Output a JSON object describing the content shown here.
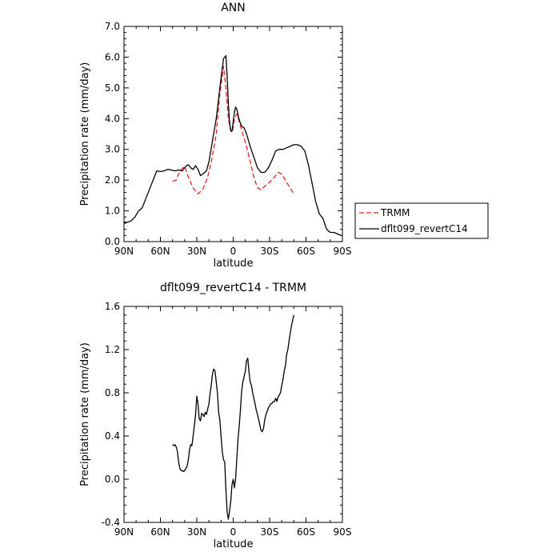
{
  "chart_data": [
    {
      "type": "line",
      "title": "ANN",
      "xlabel": "latitude",
      "ylabel": "Precipitation rate (mm/day)",
      "xlim": [
        90,
        -90
      ],
      "ylim": [
        0.0,
        7.0
      ],
      "x_ticks": [
        90,
        60,
        30,
        0,
        -30,
        -60,
        -90
      ],
      "x_tick_labels": [
        "90N",
        "60N",
        "30N",
        "0",
        "30S",
        "60S",
        "90S"
      ],
      "y_ticks": [
        0,
        1,
        2,
        3,
        4,
        5,
        6,
        7
      ],
      "y_tick_labels": [
        "0.0",
        "1.0",
        "2.0",
        "3.0",
        "4.0",
        "5.0",
        "6.0",
        "7.0"
      ],
      "legend_position": "right",
      "series": [
        {
          "name": "TRMM",
          "color": "#e8251f",
          "dash": true,
          "x": [
            50,
            47,
            44,
            40,
            37,
            33,
            29,
            25,
            21,
            18,
            14,
            11,
            8,
            6,
            4,
            2,
            1,
            0,
            -1,
            -3,
            -5,
            -8,
            -11,
            -14,
            -17,
            -20,
            -23,
            -26,
            -29,
            -33,
            -37,
            -40,
            -43,
            -46,
            -50
          ],
          "y": [
            1.96,
            2.0,
            2.3,
            2.45,
            2.1,
            1.75,
            1.55,
            1.7,
            2.1,
            2.6,
            3.5,
            4.8,
            5.7,
            5.0,
            4.0,
            3.6,
            3.55,
            3.7,
            4.0,
            4.15,
            3.9,
            3.5,
            3.1,
            2.6,
            2.1,
            1.75,
            1.68,
            1.8,
            1.9,
            2.05,
            2.25,
            2.2,
            2.0,
            1.8,
            1.55
          ]
        },
        {
          "name": "dflt099_revertC14",
          "color": "#000000",
          "dash": false,
          "x": [
            90,
            87,
            84,
            81,
            78,
            75,
            72,
            69,
            66,
            63,
            60,
            57,
            54,
            51,
            48,
            45,
            42,
            39,
            37,
            35,
            33,
            31,
            29,
            27,
            25,
            22,
            20,
            17,
            14,
            11,
            8,
            6,
            5,
            4,
            3,
            2,
            1,
            0,
            -1,
            -2,
            -3,
            -5,
            -7,
            -9,
            -11,
            -14,
            -17,
            -20,
            -23,
            -26,
            -29,
            -32,
            -35,
            -38,
            -41,
            -44,
            -47,
            -50,
            -53,
            -56,
            -59,
            -62,
            -65,
            -68,
            -71,
            -74,
            -77,
            -80,
            -83,
            -86,
            -89
          ],
          "y": [
            0.63,
            0.63,
            0.68,
            0.8,
            1.0,
            1.1,
            1.4,
            1.7,
            2.0,
            2.3,
            2.28,
            2.3,
            2.35,
            2.33,
            2.3,
            2.33,
            2.3,
            2.45,
            2.5,
            2.4,
            2.35,
            2.47,
            2.35,
            2.15,
            2.2,
            2.3,
            2.6,
            3.3,
            4.0,
            5.0,
            5.95,
            6.05,
            5.4,
            4.5,
            3.9,
            3.6,
            3.6,
            3.9,
            4.2,
            4.38,
            4.3,
            3.95,
            3.75,
            3.7,
            3.5,
            3.1,
            2.75,
            2.4,
            2.25,
            2.25,
            2.4,
            2.65,
            2.95,
            3.0,
            3.0,
            3.05,
            3.1,
            3.15,
            3.15,
            3.1,
            2.95,
            2.5,
            1.9,
            1.3,
            0.9,
            0.75,
            0.4,
            0.3,
            0.3,
            0.25,
            0.2
          ]
        }
      ]
    },
    {
      "type": "line",
      "title": "dflt099_revertC14 - TRMM",
      "xlabel": "latitude",
      "ylabel": "Precipitation rate (mm/day)",
      "xlim": [
        90,
        -90
      ],
      "ylim": [
        -0.4,
        1.6
      ],
      "x_ticks": [
        90,
        60,
        30,
        0,
        -30,
        -60,
        -90
      ],
      "x_tick_labels": [
        "90N",
        "60N",
        "30N",
        "0",
        "30S",
        "60S",
        "90S"
      ],
      "y_ticks": [
        -0.4,
        0.0,
        0.4,
        0.8,
        1.2,
        1.6
      ],
      "y_tick_labels": [
        "-0.4",
        "0.0",
        "0.4",
        "0.8",
        "1.2",
        "1.6"
      ],
      "series": [
        {
          "name": "",
          "color": "#000000",
          "dash": false,
          "x": [
            50,
            49,
            48,
            47,
            46,
            45,
            44,
            43,
            42,
            41,
            40,
            39,
            38,
            37,
            36,
            35,
            34,
            33,
            32,
            31,
            30,
            29,
            28,
            27,
            26,
            25,
            24,
            23,
            22,
            21,
            20,
            19,
            18,
            17,
            16,
            15,
            14,
            13,
            12,
            11,
            10,
            9,
            8,
            7,
            6,
            5,
            4,
            3,
            2,
            1,
            0,
            -1,
            -2,
            -3,
            -4,
            -5,
            -6,
            -7,
            -8,
            -9,
            -10,
            -11,
            -12,
            -13,
            -14,
            -15,
            -16,
            -17,
            -18,
            -19,
            -20,
            -21,
            -22,
            -23,
            -24,
            -25,
            -26,
            -27,
            -28,
            -29,
            -30,
            -31,
            -32,
            -33,
            -34,
            -35,
            -36,
            -37,
            -38,
            -39,
            -40,
            -41,
            -42,
            -43,
            -44,
            -45,
            -46,
            -47,
            -48,
            -49,
            -50
          ],
          "y": [
            0.32,
            0.31,
            0.32,
            0.3,
            0.26,
            0.16,
            0.1,
            0.08,
            0.08,
            0.07,
            0.08,
            0.1,
            0.12,
            0.18,
            0.27,
            0.32,
            0.31,
            0.4,
            0.5,
            0.6,
            0.77,
            0.7,
            0.56,
            0.54,
            0.61,
            0.6,
            0.58,
            0.62,
            0.6,
            0.65,
            0.7,
            0.8,
            0.88,
            0.98,
            1.02,
            1.0,
            0.9,
            0.8,
            0.62,
            0.55,
            0.4,
            0.25,
            0.18,
            0.16,
            -0.1,
            -0.3,
            -0.37,
            -0.3,
            -0.2,
            -0.05,
            0.0,
            -0.08,
            0.0,
            0.2,
            0.38,
            0.5,
            0.65,
            0.82,
            0.9,
            0.95,
            1.0,
            1.1,
            1.12,
            1.0,
            0.9,
            0.87,
            0.8,
            0.75,
            0.7,
            0.64,
            0.6,
            0.55,
            0.5,
            0.45,
            0.44,
            0.47,
            0.55,
            0.6,
            0.63,
            0.66,
            0.68,
            0.7,
            0.7,
            0.72,
            0.72,
            0.75,
            0.72,
            0.76,
            0.78,
            0.8,
            0.87,
            0.92,
            1.0,
            1.05,
            1.15,
            1.2,
            1.28,
            1.35,
            1.42,
            1.47,
            1.52
          ]
        }
      ]
    }
  ]
}
